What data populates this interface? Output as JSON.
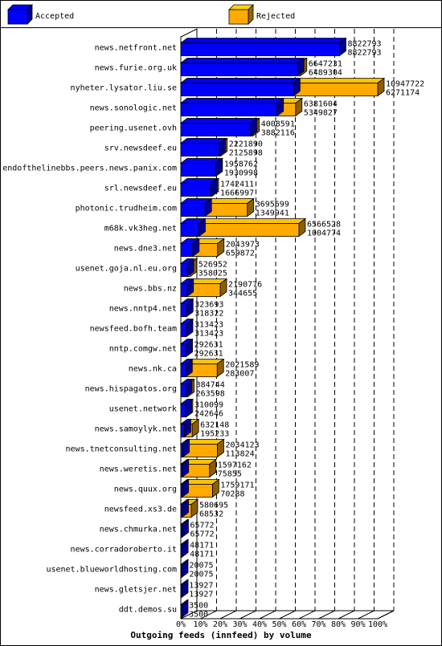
{
  "chart_data": {
    "type": "bar",
    "orientation": "horizontal",
    "stacked": "overlapping",
    "title": "Outgoing feeds (innfeed) by volume",
    "legend_position": "top",
    "grid": true,
    "x_unit": "%",
    "xlim": [
      0,
      100
    ],
    "x_ticks": [
      "0%",
      "10%",
      "20%",
      "30%",
      "40%",
      "50%",
      "60%",
      "70%",
      "80%",
      "90%",
      "100%"
    ],
    "series": [
      {
        "name": "Accepted",
        "color": "#0000ff"
      },
      {
        "name": "Rejected",
        "color": "#ffaa00"
      }
    ],
    "categories": [
      "news.netfront.net",
      "news.furie.org.uk",
      "nyheter.lysator.liu.se",
      "news.sonologic.net",
      "peering.usenet.ovh",
      "srv.newsdeef.eu",
      "endofthelinebbs.peers.news.panix.com",
      "srl.newsdeef.eu",
      "photonic.trudheim.com",
      "m68k.vk3heg.net",
      "news.dne3.net",
      "usenet.goja.nl.eu.org",
      "news.bbs.nz",
      "news.nntp4.net",
      "newsfeed.bofh.team",
      "nntp.comgw.net",
      "news.nk.ca",
      "news.hispagatos.org",
      "usenet.network",
      "news.samoylyk.net",
      "news.tnetconsulting.net",
      "news.weretis.net",
      "news.quux.org",
      "newsfeed.xs3.de",
      "news.chmurka.net",
      "news.corradoroberto.it",
      "usenet.blueworldhosting.com",
      "news.gletsjer.net",
      "ddt.demos.su"
    ],
    "offered": [
      8822793,
      6647231,
      10947722,
      6381604,
      4008591,
      2221890,
      1958762,
      1742411,
      3695699,
      6566528,
      2043973,
      526952,
      2190776,
      323693,
      313423,
      292631,
      2021589,
      384744,
      310099,
      632148,
      2034123,
      1597162,
      1759171,
      580695,
      65772,
      48171,
      20075,
      13927,
      3500
    ],
    "accepted": [
      8822793,
      6489304,
      6271174,
      5349827,
      3882116,
      2125898,
      1930998,
      1666997,
      1349941,
      1004774,
      659872,
      358025,
      344655,
      318322,
      313423,
      292631,
      283007,
      263598,
      242646,
      195233,
      113824,
      75855,
      70288,
      68532,
      65772,
      48171,
      20075,
      13927,
      3500
    ]
  }
}
